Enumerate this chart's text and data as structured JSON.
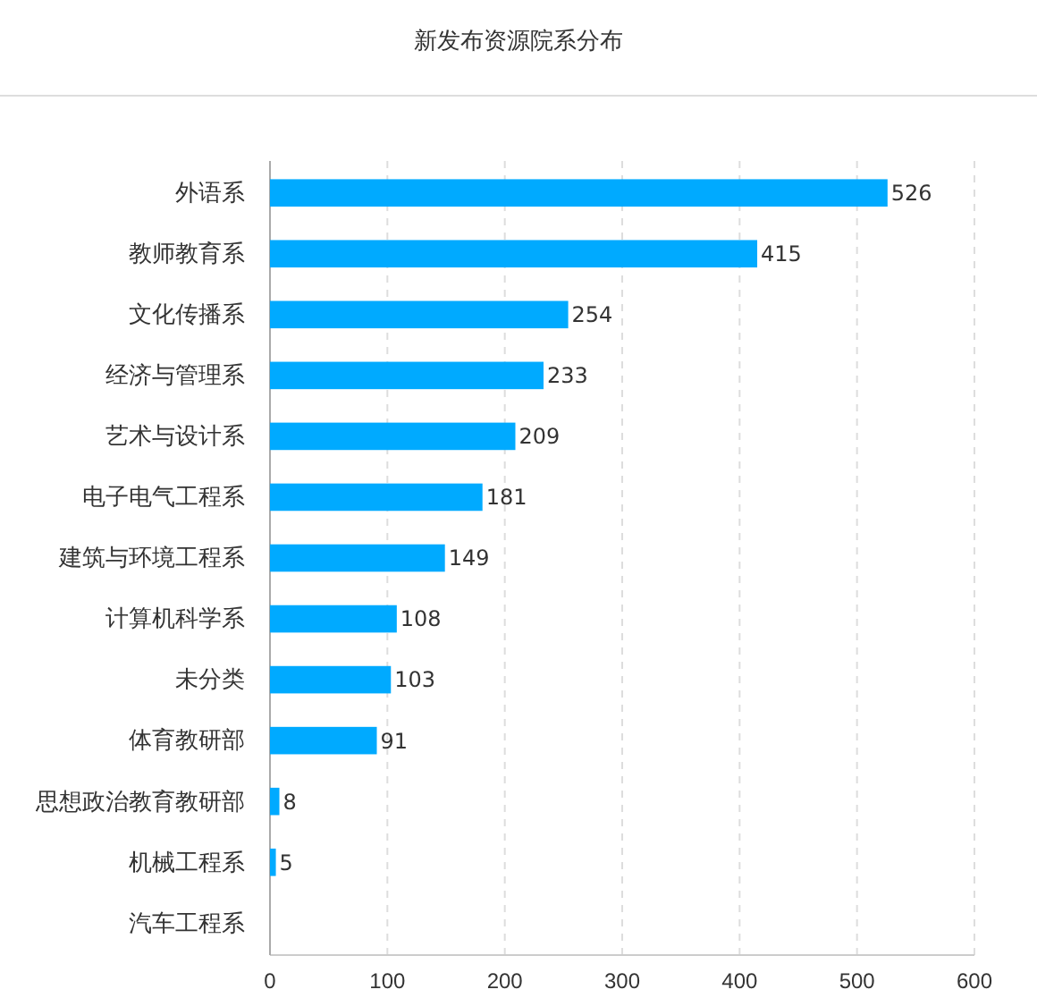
{
  "chart_data": {
    "type": "bar",
    "orientation": "horizontal",
    "title": "新发布资源院系分布",
    "categories": [
      "外语系",
      "教师教育系",
      "文化传播系",
      "经济与管理系",
      "艺术与设计系",
      "电子电气工程系",
      "建筑与环境工程系",
      "计算机科学系",
      "未分类",
      "体育教研部",
      "思想政治教育教研部",
      "机械工程系",
      "汽车工程系"
    ],
    "values": [
      526,
      415,
      254,
      233,
      209,
      181,
      149,
      108,
      103,
      91,
      8,
      5,
      0
    ],
    "value_labels": [
      "526",
      "415",
      "254",
      "233",
      "209",
      "181",
      "149",
      "108",
      "103",
      "91",
      "8",
      "5",
      null
    ],
    "color": "#00aaff",
    "xlim": [
      0,
      600
    ],
    "xticks": [
      0,
      100,
      200,
      300,
      400,
      500,
      600
    ],
    "grid": "x"
  }
}
